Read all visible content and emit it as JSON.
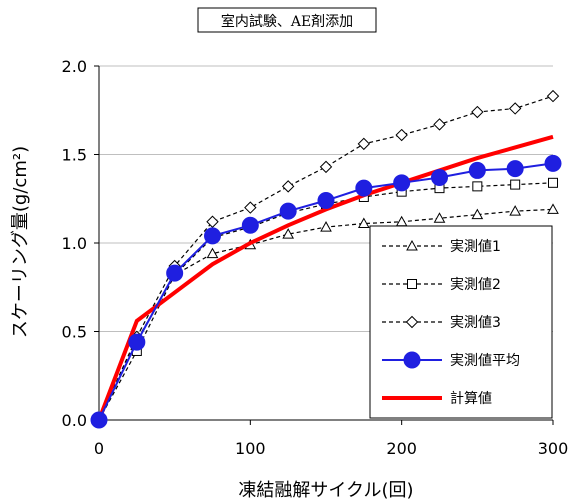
{
  "chart_data": {
    "type": "line",
    "title": "室内試験、AE剤添加",
    "xlabel": "凍結融解サイクル(回)",
    "ylabel": "スケーリング量(g/cm²)",
    "xlim": [
      0,
      300
    ],
    "ylim": [
      0.0,
      2.0
    ],
    "x_ticks": [
      "0",
      "100",
      "200",
      "300"
    ],
    "y_ticks": [
      "0.0",
      "0.5",
      "1.0",
      "1.5",
      "2.0"
    ],
    "grid": "horizontal",
    "legend_position": "bottom-right",
    "series": [
      {
        "name": "実測値1",
        "marker": "triangle",
        "style": "dashed",
        "color": "#000000",
        "x": [
          0,
          25,
          50,
          75,
          100,
          125,
          150,
          175,
          200,
          225,
          250,
          275,
          300
        ],
        "y": [
          0.0,
          0.45,
          0.82,
          0.94,
          0.99,
          1.05,
          1.09,
          1.11,
          1.12,
          1.14,
          1.16,
          1.18,
          1.19
        ]
      },
      {
        "name": "実測値2",
        "marker": "square",
        "style": "dashed",
        "color": "#000000",
        "x": [
          0,
          25,
          50,
          75,
          100,
          125,
          150,
          175,
          200,
          225,
          250,
          275,
          300
        ],
        "y": [
          0.0,
          0.39,
          0.82,
          1.03,
          1.09,
          1.17,
          1.22,
          1.26,
          1.29,
          1.31,
          1.32,
          1.33,
          1.34
        ]
      },
      {
        "name": "実測値3",
        "marker": "diamond",
        "style": "dashed",
        "color": "#000000",
        "x": [
          0,
          25,
          50,
          75,
          100,
          125,
          150,
          175,
          200,
          225,
          250,
          275,
          300
        ],
        "y": [
          0.0,
          0.47,
          0.87,
          1.12,
          1.2,
          1.32,
          1.43,
          1.56,
          1.61,
          1.67,
          1.74,
          1.76,
          1.83
        ]
      },
      {
        "name": "実測値平均",
        "marker": "circle",
        "style": "solid",
        "color": "#1f1fe0",
        "x": [
          0,
          25,
          50,
          75,
          100,
          125,
          150,
          175,
          200,
          225,
          250,
          275,
          300
        ],
        "y": [
          0.0,
          0.44,
          0.83,
          1.04,
          1.1,
          1.18,
          1.24,
          1.31,
          1.34,
          1.37,
          1.41,
          1.42,
          1.45
        ]
      },
      {
        "name": "計算値",
        "marker": "none",
        "style": "solid",
        "color": "#ff0000",
        "x": [
          0,
          25,
          50,
          75,
          100,
          125,
          150,
          175,
          200,
          225,
          250,
          275,
          300
        ],
        "y": [
          0.0,
          0.56,
          0.72,
          0.88,
          1.0,
          1.1,
          1.19,
          1.27,
          1.34,
          1.41,
          1.48,
          1.54,
          1.6
        ]
      }
    ]
  }
}
